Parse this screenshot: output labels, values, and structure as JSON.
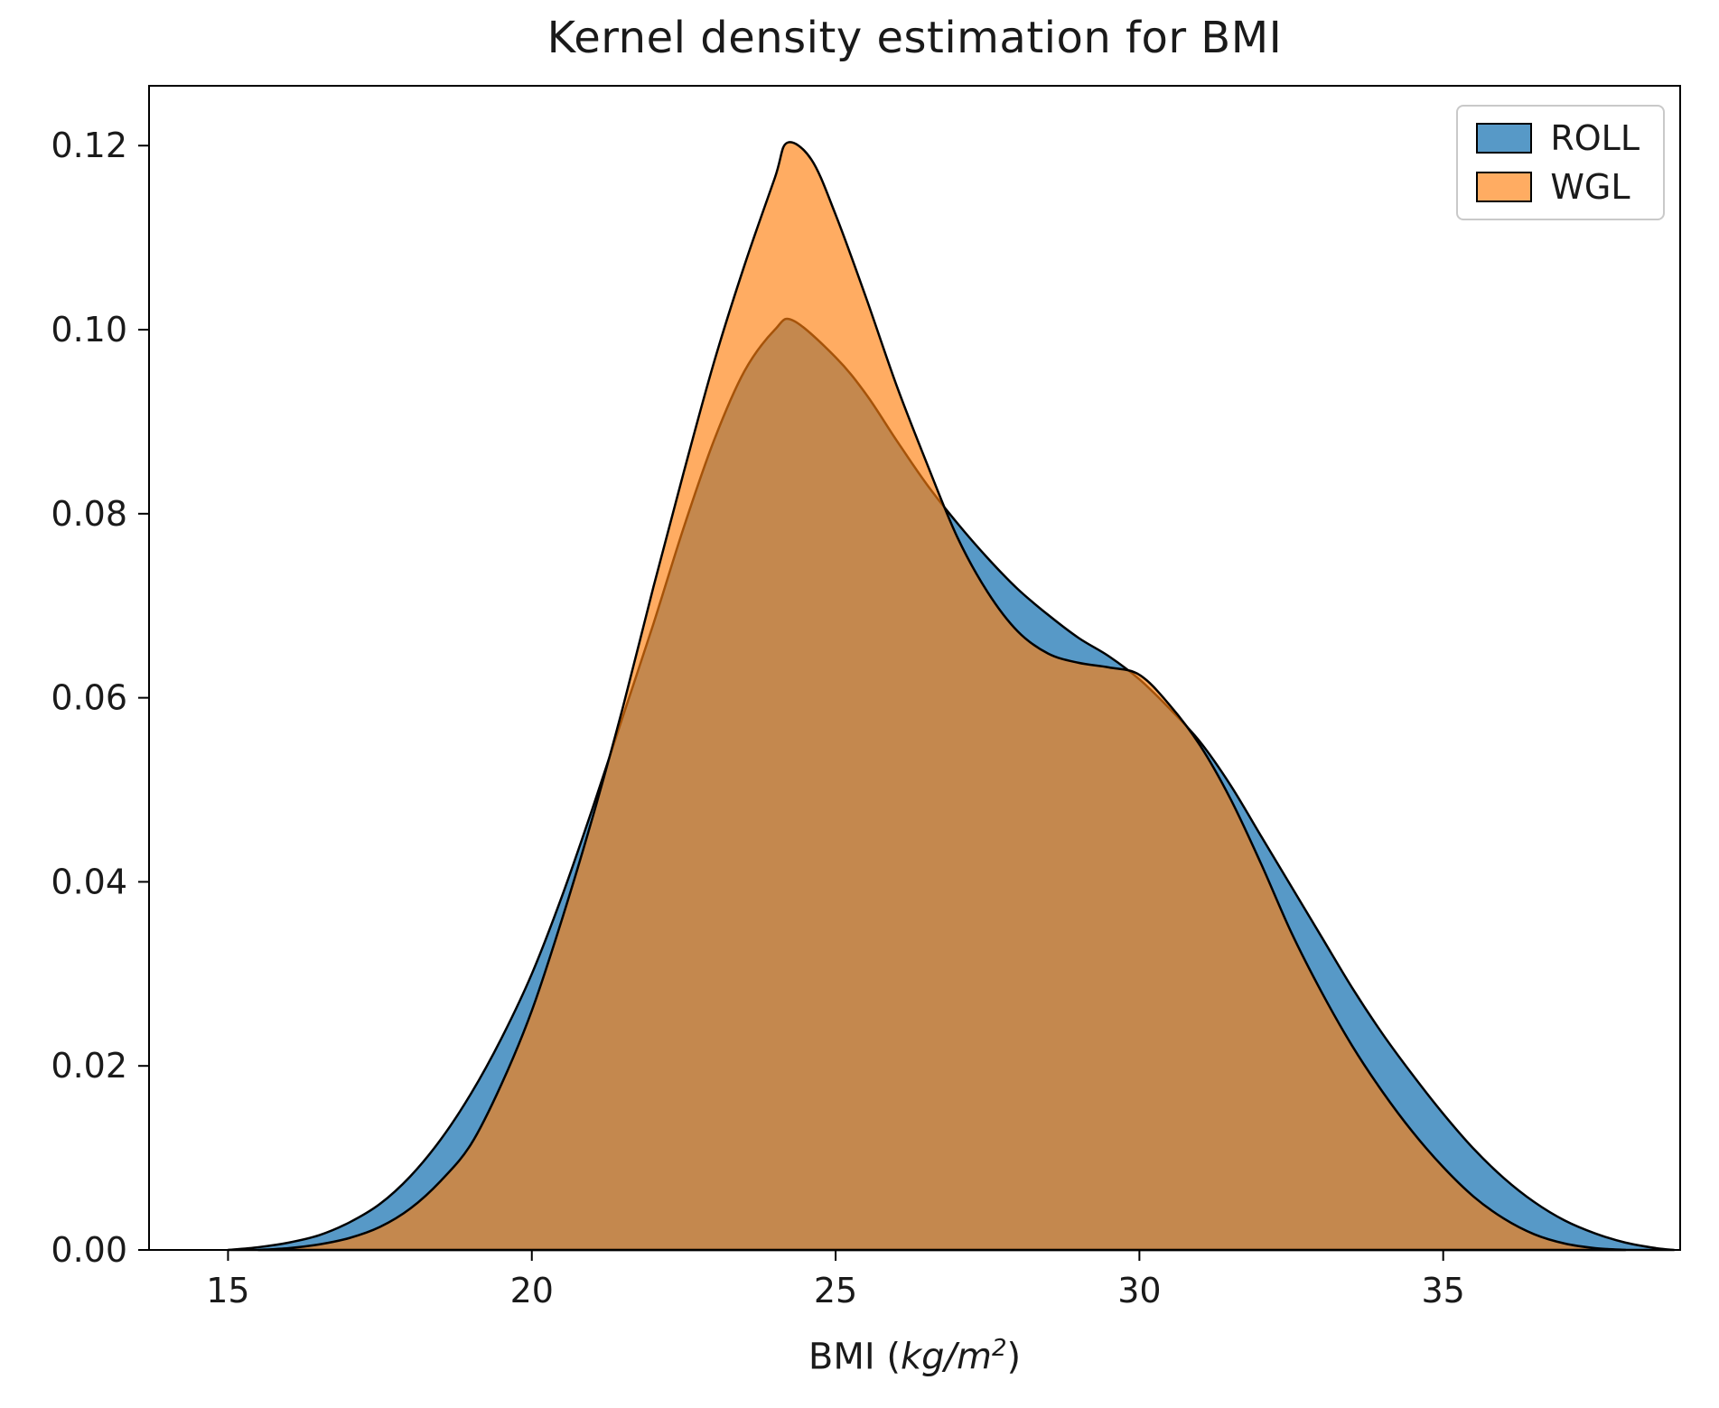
{
  "title": "Kernel density estimation for BMI",
  "labels": {
    "xlabel_prefix": "BMI (",
    "xlabel_math": "kg/m",
    "xlabel_sup": "2",
    "xlabel_suffix": ")"
  },
  "chart_data": {
    "type": "area",
    "subtype": "kde",
    "title": "Kernel density estimation for BMI",
    "xlabel": "BMI (kg/m^2)",
    "ylabel": "",
    "grid": false,
    "legend_position": "upper right",
    "xlim": [
      13.7,
      38.9
    ],
    "ylim": [
      0,
      0.1265
    ],
    "x_ticks": [
      15,
      20,
      25,
      30,
      35
    ],
    "x_tick_labels": [
      "15",
      "20",
      "25",
      "30",
      "35"
    ],
    "y_ticks": [
      0.0,
      0.02,
      0.04,
      0.06,
      0.08,
      0.1,
      0.12
    ],
    "y_tick_labels": [
      "0.00",
      "0.02",
      "0.04",
      "0.06",
      "0.08",
      "0.10",
      "0.12"
    ],
    "edge_color": "#000000",
    "series": [
      {
        "name": "ROLL",
        "color": "#1f77b4",
        "fill_opacity": 0.75,
        "peak": {
          "x": 24.3,
          "y": 0.101
        },
        "points": [
          [
            15.0,
            0.0
          ],
          [
            15.5,
            0.0003
          ],
          [
            16.0,
            0.0008
          ],
          [
            16.5,
            0.0016
          ],
          [
            17.0,
            0.003
          ],
          [
            17.5,
            0.005
          ],
          [
            18.0,
            0.008
          ],
          [
            18.5,
            0.012
          ],
          [
            19.0,
            0.017
          ],
          [
            19.5,
            0.023
          ],
          [
            20.0,
            0.03
          ],
          [
            20.5,
            0.0385
          ],
          [
            21.0,
            0.048
          ],
          [
            21.5,
            0.058
          ],
          [
            22.0,
            0.068
          ],
          [
            22.5,
            0.0785
          ],
          [
            23.0,
            0.088
          ],
          [
            23.5,
            0.0955
          ],
          [
            24.0,
            0.1
          ],
          [
            24.3,
            0.101
          ],
          [
            25.0,
            0.097
          ],
          [
            25.5,
            0.093
          ],
          [
            26.0,
            0.088
          ],
          [
            26.5,
            0.0832
          ],
          [
            27.0,
            0.079
          ],
          [
            27.5,
            0.0752
          ],
          [
            28.0,
            0.0718
          ],
          [
            28.5,
            0.069
          ],
          [
            29.0,
            0.0665
          ],
          [
            29.5,
            0.0645
          ],
          [
            30.0,
            0.062
          ],
          [
            30.5,
            0.0588
          ],
          [
            31.0,
            0.0552
          ],
          [
            31.5,
            0.0505
          ],
          [
            32.0,
            0.045
          ],
          [
            32.5,
            0.0395
          ],
          [
            33.0,
            0.034
          ],
          [
            33.5,
            0.0285
          ],
          [
            34.0,
            0.0235
          ],
          [
            34.5,
            0.019
          ],
          [
            35.0,
            0.0148
          ],
          [
            35.5,
            0.011
          ],
          [
            36.0,
            0.0078
          ],
          [
            36.5,
            0.0052
          ],
          [
            37.0,
            0.0032
          ],
          [
            37.5,
            0.0018
          ],
          [
            38.0,
            0.0008
          ],
          [
            38.5,
            0.0002
          ],
          [
            38.8,
            0.0
          ]
        ]
      },
      {
        "name": "WGL",
        "color": "#ff7f0e",
        "fill_opacity": 0.65,
        "peak": {
          "x": 24.2,
          "y": 0.1203
        },
        "points": [
          [
            15.5,
            0.0
          ],
          [
            16.0,
            0.0002
          ],
          [
            16.5,
            0.0006
          ],
          [
            17.0,
            0.0013
          ],
          [
            17.5,
            0.0025
          ],
          [
            18.0,
            0.0045
          ],
          [
            18.5,
            0.0075
          ],
          [
            19.0,
            0.0115
          ],
          [
            19.5,
            0.018
          ],
          [
            20.0,
            0.026
          ],
          [
            20.5,
            0.036
          ],
          [
            21.0,
            0.047
          ],
          [
            21.5,
            0.059
          ],
          [
            22.0,
            0.072
          ],
          [
            22.5,
            0.0845
          ],
          [
            23.0,
            0.0965
          ],
          [
            23.5,
            0.107
          ],
          [
            24.0,
            0.1165
          ],
          [
            24.2,
            0.1203
          ],
          [
            24.6,
            0.1185
          ],
          [
            25.0,
            0.1125
          ],
          [
            25.5,
            0.1035
          ],
          [
            26.0,
            0.094
          ],
          [
            26.5,
            0.0855
          ],
          [
            27.0,
            0.0775
          ],
          [
            27.5,
            0.0715
          ],
          [
            28.0,
            0.0672
          ],
          [
            28.5,
            0.0648
          ],
          [
            29.0,
            0.0638
          ],
          [
            29.5,
            0.0633
          ],
          [
            30.0,
            0.0625
          ],
          [
            30.5,
            0.0592
          ],
          [
            31.0,
            0.0548
          ],
          [
            31.5,
            0.049
          ],
          [
            32.0,
            0.042
          ],
          [
            32.5,
            0.0345
          ],
          [
            33.0,
            0.028
          ],
          [
            33.5,
            0.0222
          ],
          [
            34.0,
            0.0172
          ],
          [
            34.5,
            0.0128
          ],
          [
            35.0,
            0.009
          ],
          [
            35.5,
            0.0058
          ],
          [
            36.0,
            0.0034
          ],
          [
            36.5,
            0.0017
          ],
          [
            37.0,
            0.0007
          ],
          [
            37.5,
            0.0002
          ],
          [
            38.0,
            0.0
          ]
        ]
      }
    ]
  }
}
